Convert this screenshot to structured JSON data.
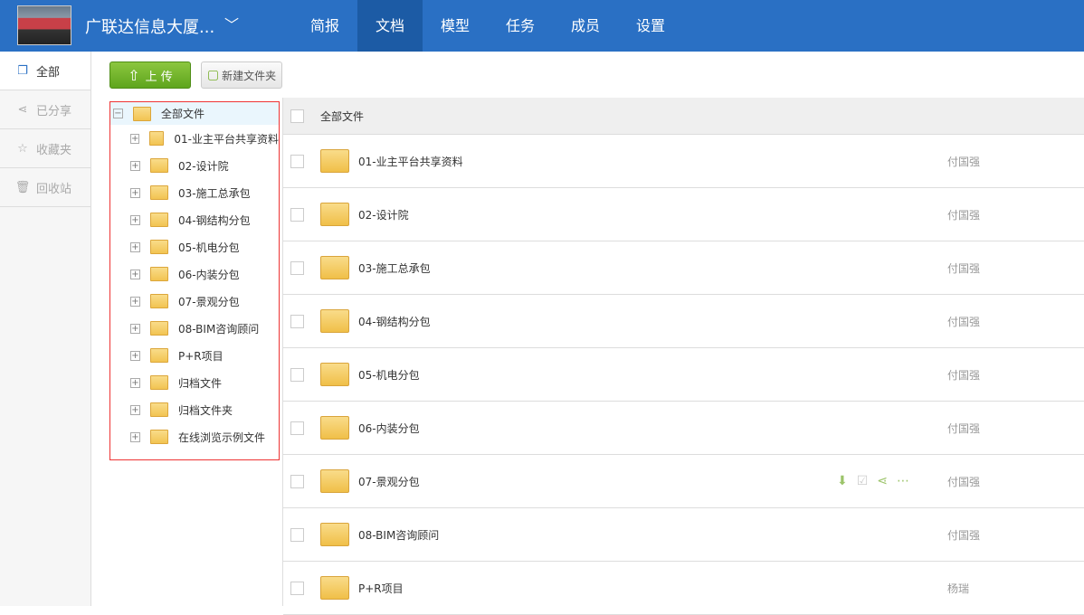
{
  "header": {
    "project_title": "广联达信息大厦...",
    "nav": [
      "简报",
      "文档",
      "模型",
      "任务",
      "成员",
      "设置"
    ],
    "active_nav": "文档"
  },
  "sidebar": {
    "items": [
      {
        "label": "全部",
        "icon": "stack-icon"
      },
      {
        "label": "已分享",
        "icon": "share-icon"
      },
      {
        "label": "收藏夹",
        "icon": "star-icon"
      },
      {
        "label": "回收站",
        "icon": "trash-icon"
      }
    ]
  },
  "toolbar": {
    "upload": "上 传",
    "new_folder": "新建文件夹"
  },
  "tree": {
    "root": "全部文件",
    "children": [
      "01-业主平台共享资料",
      "02-设计院",
      "03-施工总承包",
      "04-钢结构分包",
      "05-机电分包",
      "06-内装分包",
      "07-景观分包",
      "08-BIM咨询顾问",
      "P+R项目",
      "归档文件",
      "归档文件夹",
      "在线浏览示例文件"
    ]
  },
  "table": {
    "header": "全部文件",
    "rows": [
      {
        "name": "01-业主平台共享资料",
        "owner": "付国强"
      },
      {
        "name": "02-设计院",
        "owner": "付国强"
      },
      {
        "name": "03-施工总承包",
        "owner": "付国强"
      },
      {
        "name": "04-钢结构分包",
        "owner": "付国强"
      },
      {
        "name": "05-机电分包",
        "owner": "付国强"
      },
      {
        "name": "06-内装分包",
        "owner": "付国强"
      },
      {
        "name": "07-景观分包",
        "owner": "付国强",
        "hover": true
      },
      {
        "name": "08-BIM咨询顾问",
        "owner": "付国强"
      },
      {
        "name": "P+R项目",
        "owner": "杨瑞"
      }
    ]
  },
  "colors": {
    "header": "#2a70c4",
    "active_nav": "#1c5ba5",
    "upload": "#6aae25",
    "tree_border": "#ee3333"
  }
}
